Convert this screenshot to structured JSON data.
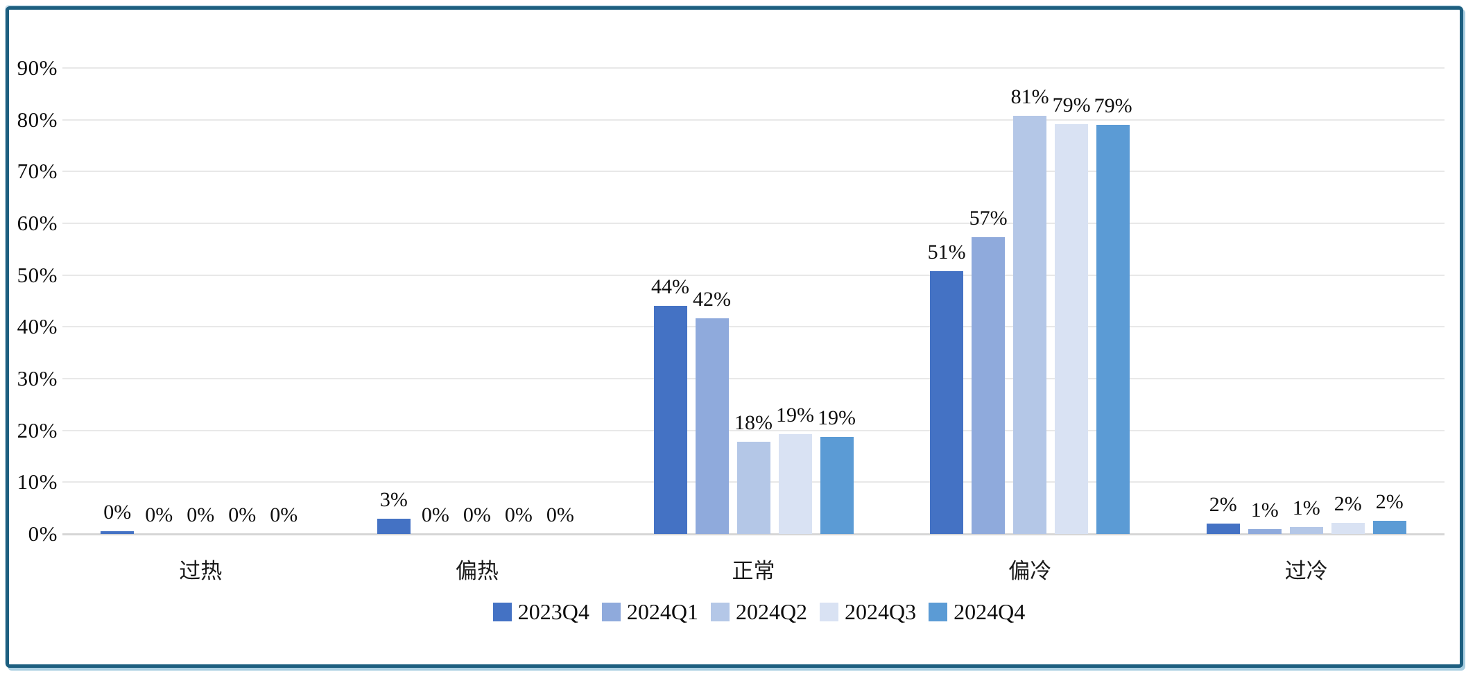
{
  "colors": {
    "frame_border": "#1d5f80",
    "frame_halo": "#aacfe2",
    "gridline": "#e8e8e8",
    "axis_line": "#d6d6d6",
    "text": "#0d0d0d"
  },
  "chart_data": {
    "type": "bar",
    "title": "",
    "xlabel": "",
    "ylabel": "",
    "categories": [
      "过热",
      "偏热",
      "正常",
      "偏冷",
      "过冷"
    ],
    "series": [
      {
        "name": "2023Q4",
        "color": "#4472c4",
        "values": [
          0,
          3,
          44,
          51,
          2
        ],
        "display_heights": [
          0.5,
          3,
          44,
          50.7,
          2
        ],
        "labels": [
          "0%",
          "3%",
          "44%",
          "51%",
          "2%"
        ]
      },
      {
        "name": "2024Q1",
        "color": "#8faadc",
        "values": [
          0,
          0,
          42,
          57,
          1
        ],
        "display_heights": [
          0,
          0,
          41.6,
          57.3,
          0.9
        ],
        "labels": [
          "0%",
          "0%",
          "42%",
          "57%",
          "1%"
        ]
      },
      {
        "name": "2024Q2",
        "color": "#b4c7e7",
        "values": [
          0,
          0,
          18,
          81,
          1
        ],
        "display_heights": [
          0,
          0,
          17.8,
          80.7,
          1.4
        ],
        "labels": [
          "0%",
          "0%",
          "18%",
          "81%",
          "1%"
        ]
      },
      {
        "name": "2024Q3",
        "color": "#d9e2f3",
        "values": [
          0,
          0,
          19,
          79,
          2
        ],
        "display_heights": [
          0,
          0,
          19.3,
          79.2,
          2.2
        ],
        "labels": [
          "0%",
          "0%",
          "19%",
          "79%",
          "2%"
        ]
      },
      {
        "name": "2024Q4",
        "color": "#5b9bd5",
        "values": [
          0,
          0,
          19,
          79,
          2
        ],
        "display_heights": [
          0,
          0,
          18.8,
          79.0,
          2.5
        ],
        "labels": [
          "0%",
          "0%",
          "19%",
          "79%",
          "2%"
        ]
      }
    ],
    "ylim": [
      0,
      90
    ],
    "ytick_values": [
      0,
      10,
      20,
      30,
      40,
      50,
      60,
      70,
      80,
      90
    ],
    "ytick_labels": [
      "0%",
      "10%",
      "20%",
      "30%",
      "40%",
      "50%",
      "60%",
      "70%",
      "80%",
      "90%"
    ],
    "grid": true,
    "legend_position": "bottom"
  }
}
